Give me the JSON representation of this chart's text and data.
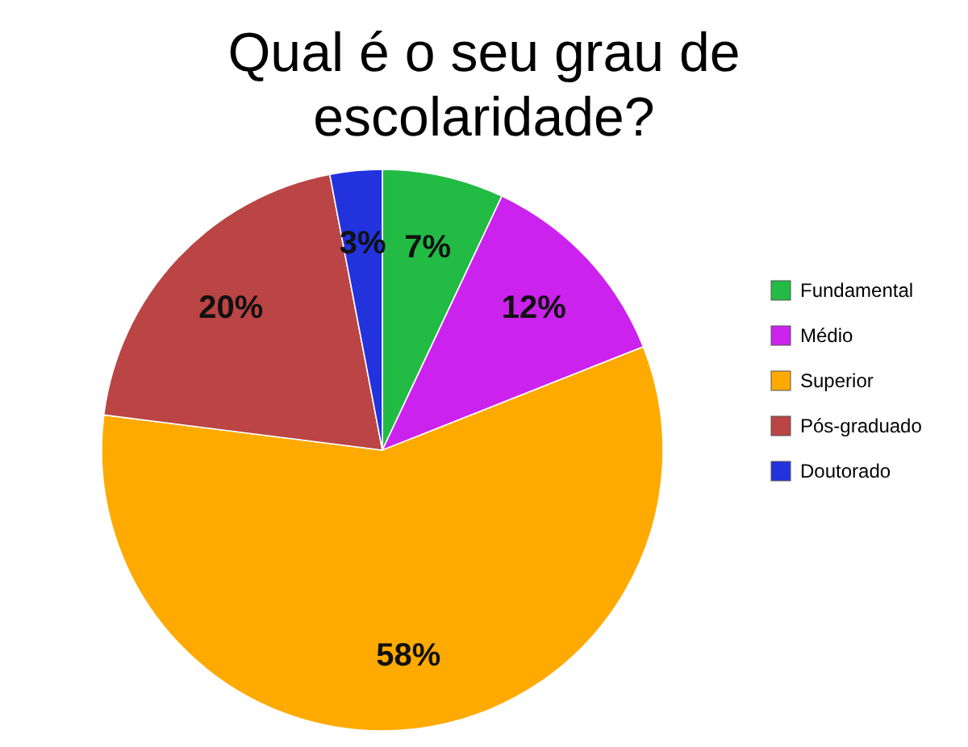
{
  "chart_data": {
    "type": "pie",
    "title": "Qual é o seu grau de escolaridade?",
    "categories": [
      "Fundamental",
      "Médio",
      "Superior",
      "Pós-graduado",
      "Doutorado"
    ],
    "values": [
      7,
      12,
      58,
      20,
      3
    ],
    "value_labels": [
      "7%",
      "12%",
      "58%",
      "20%",
      "3%"
    ],
    "colors": [
      "#22bb44",
      "#cc22ee",
      "#ffaa00",
      "#bb4444",
      "#2233dd"
    ],
    "legend": "right"
  }
}
